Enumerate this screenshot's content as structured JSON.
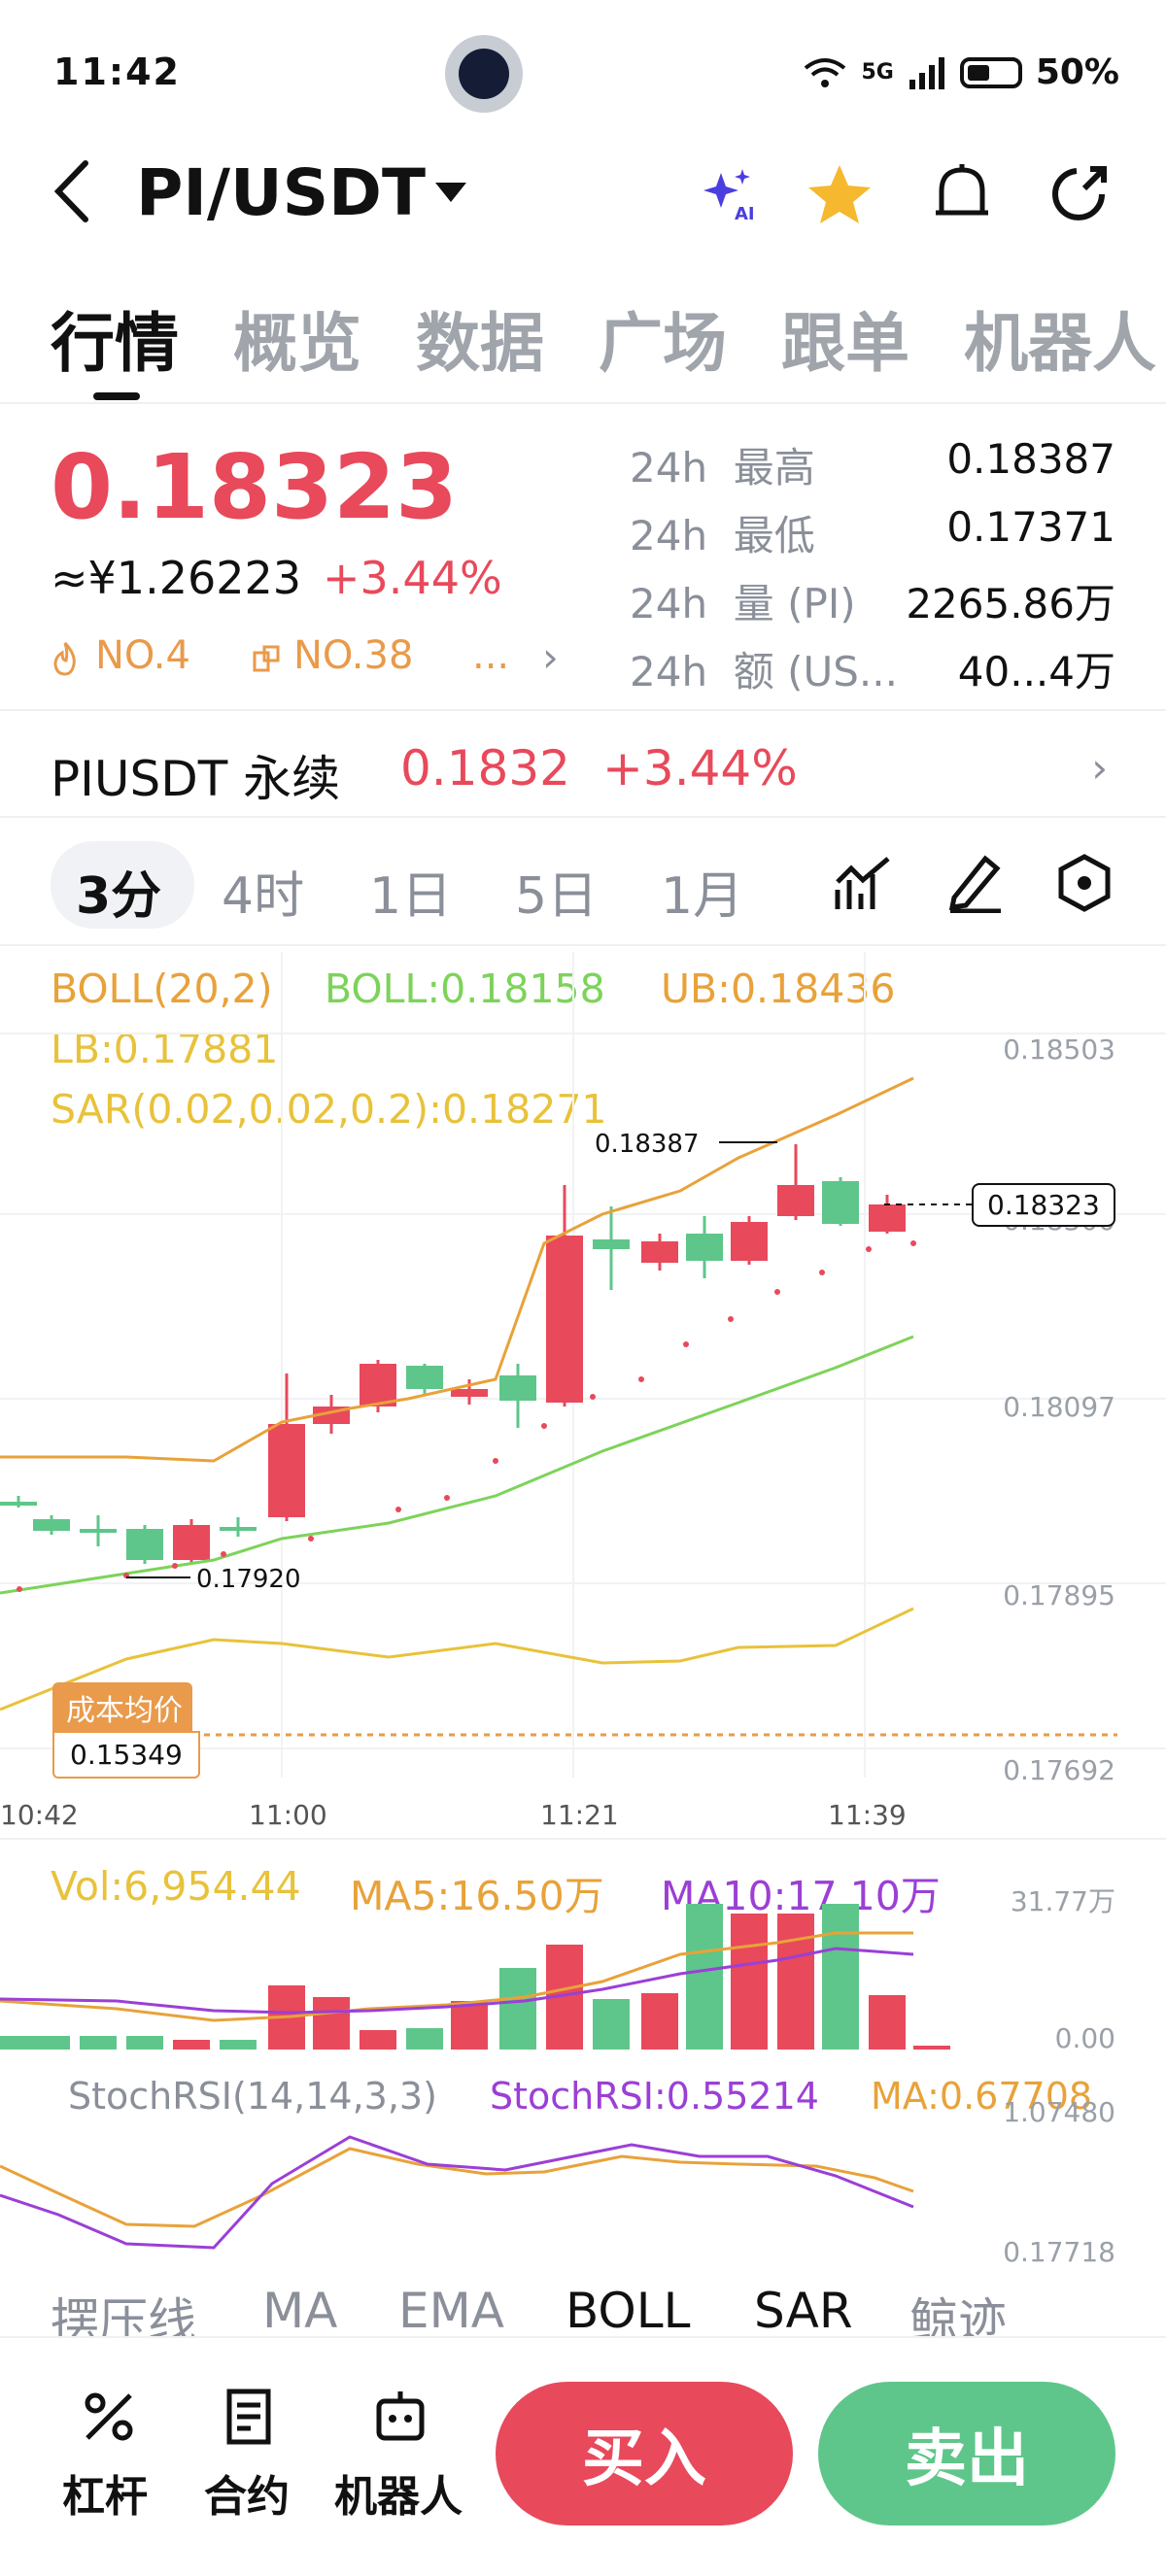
{
  "status_bar": {
    "time": "11:42",
    "network": "5G",
    "battery": "50%"
  },
  "header": {
    "pair": "PI/USDT"
  },
  "main_tabs": [
    "行情",
    "概览",
    "数据",
    "广场",
    "跟单",
    "机器人"
  ],
  "price": {
    "last": "0.18323",
    "cny": "≈¥1.26223",
    "change_pct": "+3.44%",
    "rank1": "NO.4",
    "rank2": "NO.38",
    "rank_more": "..."
  },
  "stats": [
    {
      "period": "24h",
      "label": "最高",
      "value": "0.18387"
    },
    {
      "period": "24h",
      "label": "最低",
      "value": "0.17371"
    },
    {
      "period": "24h",
      "label": "量 (PI)",
      "value": "2265.86万"
    },
    {
      "period": "24h",
      "label": "额 (US...",
      "value": "40...4万"
    }
  ],
  "perpetual": {
    "name": "PIUSDT 永续",
    "price": "0.1832",
    "change_pct": "+3.44%"
  },
  "intervals": [
    "3分",
    "4时",
    "1日",
    "5日",
    "1月"
  ],
  "indicators": {
    "boll_params": "BOLL(20,2)",
    "boll_mid": "BOLL:0.18158",
    "boll_ub": "UB:0.18436",
    "boll_lb": "LB:0.17881",
    "sar": "SAR(0.02,0.02,0.2):0.18271",
    "vol": "Vol:6,954.44",
    "vol_ma5": "MA5:16.50万",
    "vol_ma10": "MA10:17.10万",
    "stoch_params": "StochRSI(14,14,3,3)",
    "stoch_value": "StochRSI:0.55214",
    "stoch_ma": "MA:0.67708"
  },
  "chart": {
    "y_axis": [
      "0.18503",
      "0.18300",
      "0.18097",
      "0.17895",
      "0.17692"
    ],
    "x_axis": [
      "10:42",
      "11:00",
      "11:21",
      "11:39"
    ],
    "high_marker": "0.18387",
    "low_marker": "0.17920",
    "current_tag": "0.18323",
    "cost_label": "成本均价",
    "cost_value": "0.15349",
    "vol_axis": [
      "31.77万",
      "0.00"
    ],
    "stoch_axis": [
      "1.07480",
      "0.17718"
    ]
  },
  "indicator_tabs": [
    "摆压线",
    "MA",
    "EMA",
    "BOLL",
    "SAR",
    "鲸迹"
  ],
  "bottom_nav": {
    "leverage": "杠杆",
    "contract": "合约",
    "bot": "机器人",
    "buy": "买入",
    "sell": "卖出"
  },
  "colors": {
    "up": "#e8495b",
    "down": "#5ec68a",
    "boll_mid": "#7dd35a",
    "boll_band": "#e8a23a",
    "ma10": "#9b3fd6"
  }
}
